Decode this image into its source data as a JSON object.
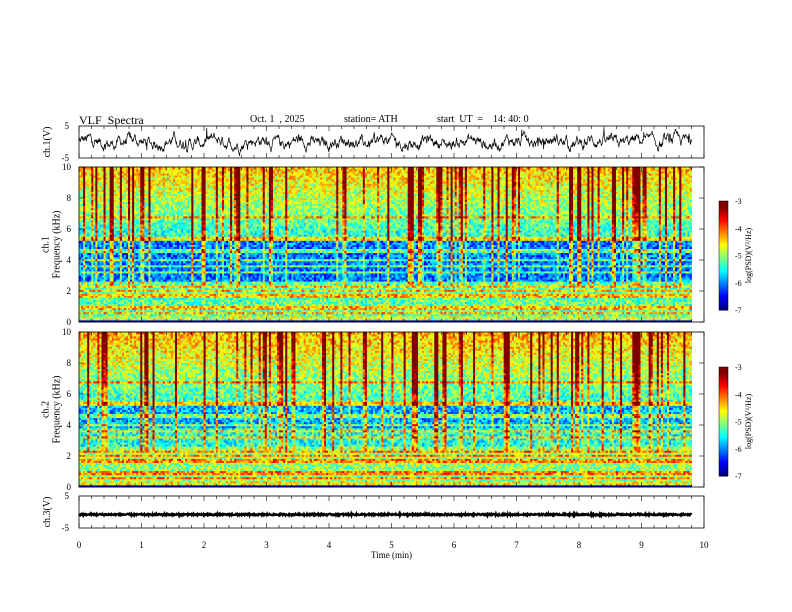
{
  "header": {
    "title": "VLF  Spectra",
    "date": "Oct. 1  , 2025",
    "station": "station= ATH",
    "start_ut": "start  UT  =    14: 40: 0"
  },
  "chart_data": [
    {
      "type": "line",
      "ylabel": "ch.1(V)",
      "ylim": [
        -5,
        5
      ],
      "yticks": [
        "5",
        "-5"
      ],
      "amplitude": 2,
      "noise_level": 1.2
    },
    {
      "type": "heatmap",
      "ylabel": "ch.1\nFrequency (kHz)",
      "ylim": [
        0,
        10
      ],
      "yticks": [
        "0",
        "2",
        "4",
        "6",
        "8",
        "10"
      ],
      "colorbar": {
        "label": "log(PSD)(V²/Hz)",
        "range": [
          -7,
          -3
        ],
        "ticks": [
          "-3",
          "-4",
          "-5",
          "-6",
          "-7"
        ]
      }
    },
    {
      "type": "heatmap",
      "ylabel": "ch.2\nFrequency (kHz)",
      "ylim": [
        0,
        10
      ],
      "yticks": [
        "0",
        "2",
        "4",
        "6",
        "8",
        "10"
      ],
      "colorbar": {
        "label": "log(PSD)(V²/Hz)",
        "range": [
          -7,
          -3
        ],
        "ticks": [
          "-3",
          "-4",
          "-5",
          "-6",
          "-7"
        ]
      }
    },
    {
      "type": "line",
      "ylabel": "ch.3(V)",
      "ylim": [
        -5,
        5
      ],
      "yticks": [
        "5",
        "-5"
      ],
      "level": -0.8
    }
  ],
  "xaxis": {
    "label": "Time  (min)",
    "range": [
      0,
      10
    ],
    "data_end": 9.8,
    "ticks": [
      "0",
      "1",
      "2",
      "3",
      "4",
      "5",
      "6",
      "7",
      "8",
      "9",
      "10"
    ]
  }
}
